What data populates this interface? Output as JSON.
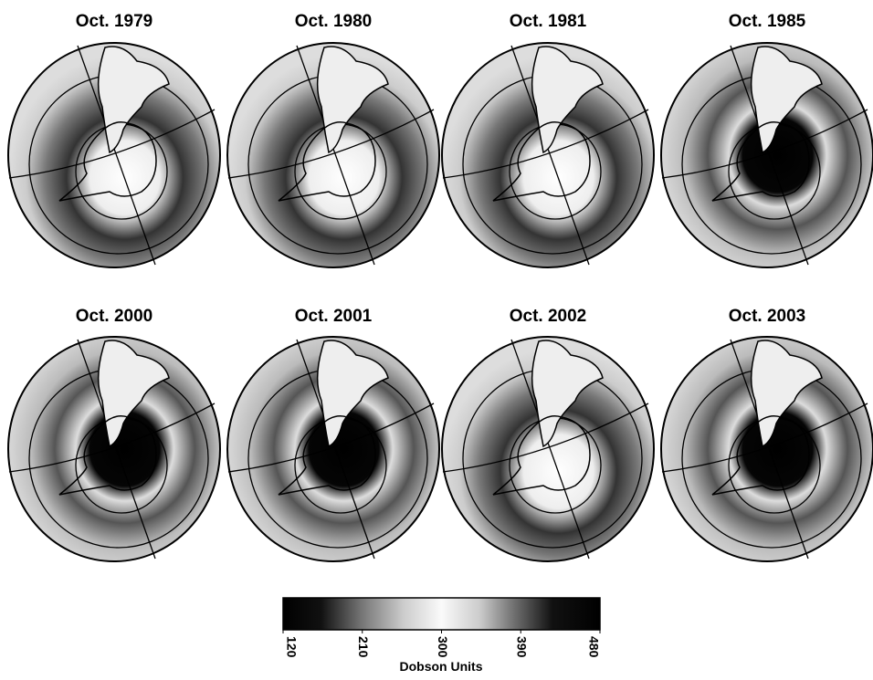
{
  "panels": [
    {
      "title": "Oct. 1979"
    },
    {
      "title": "Oct. 1980"
    },
    {
      "title": "Oct. 1981"
    },
    {
      "title": "Oct. 1985"
    },
    {
      "title": "Oct. 2000"
    },
    {
      "title": "Oct. 2001"
    },
    {
      "title": "Oct. 2002"
    },
    {
      "title": "Oct. 2003"
    }
  ],
  "colorbar": {
    "label": "Dobson Units",
    "range": [
      120,
      480
    ],
    "ticks": [
      120,
      210,
      300,
      390,
      480
    ]
  }
}
